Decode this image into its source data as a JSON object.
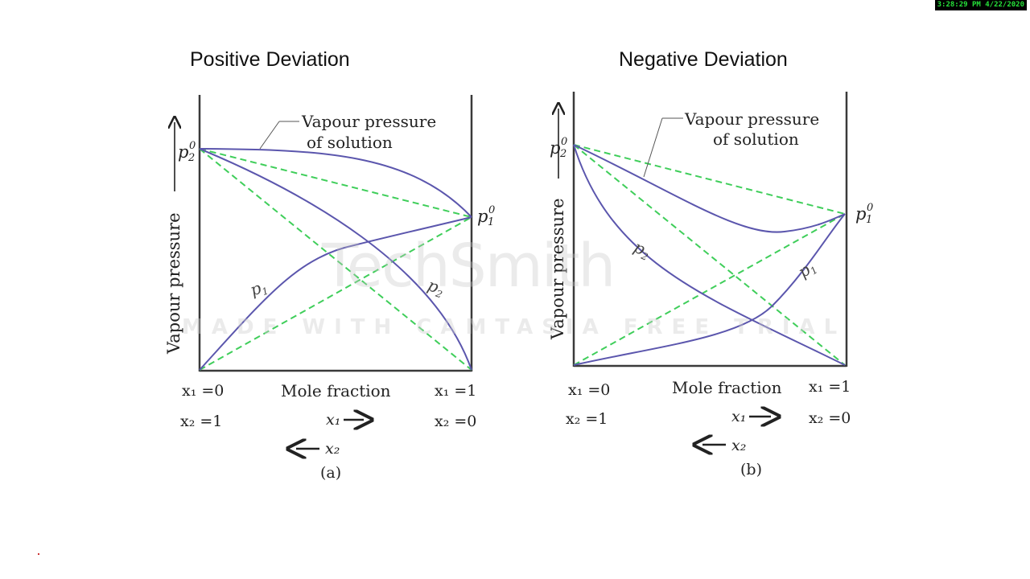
{
  "timestamp": "3:28:29 PM 4/22/2020",
  "colors": {
    "curve": "#5b56ad",
    "dashed": "#3fce5a",
    "axis": "#3a3a3a"
  },
  "watermark": {
    "logo": "TechSmith",
    "subtitle": "MADE WITH CAMTASIA FREE TRIAL"
  },
  "panels": [
    {
      "title": "Positive Deviation",
      "ylabel": "Vapour pressure",
      "callout": [
        "Vapour pressure",
        "of solution"
      ],
      "p2_label": "p",
      "p2_sub": "2",
      "p2_sup": "0",
      "p1_label": "p",
      "p1_sub": "1",
      "p1_sup": "0",
      "curve_p1": "p",
      "curve_p1_sub": "1",
      "curve_p2": "p",
      "curve_p2_sub": "2",
      "xlabel": "Mole fraction",
      "left_top": "x₁ =0",
      "left_bottom": "x₂ =1",
      "right_top": "x₁ =1",
      "right_bottom": "x₂ =0",
      "x1_arrow": "x₁",
      "x2_arrow": "x₂",
      "caption": "(a)"
    },
    {
      "title": "Negative Deviation",
      "ylabel": "Vapour pressure",
      "callout": [
        "Vapour pressure",
        "of solution"
      ],
      "p2_label": "p",
      "p2_sub": "2",
      "p2_sup": "0",
      "p1_label": "p",
      "p1_sub": "1",
      "p1_sup": "0",
      "curve_p1": "p",
      "curve_p1_sub": "1",
      "curve_p2": "p",
      "curve_p2_sub": "2",
      "xlabel": "Mole fraction",
      "left_top": "x₁ =0",
      "left_bottom": "x₂ =1",
      "right_top": "x₁ =1",
      "right_bottom": "x₂ =0",
      "x1_arrow": "x₁",
      "x2_arrow": "x₂",
      "caption": "(b)"
    }
  ]
}
